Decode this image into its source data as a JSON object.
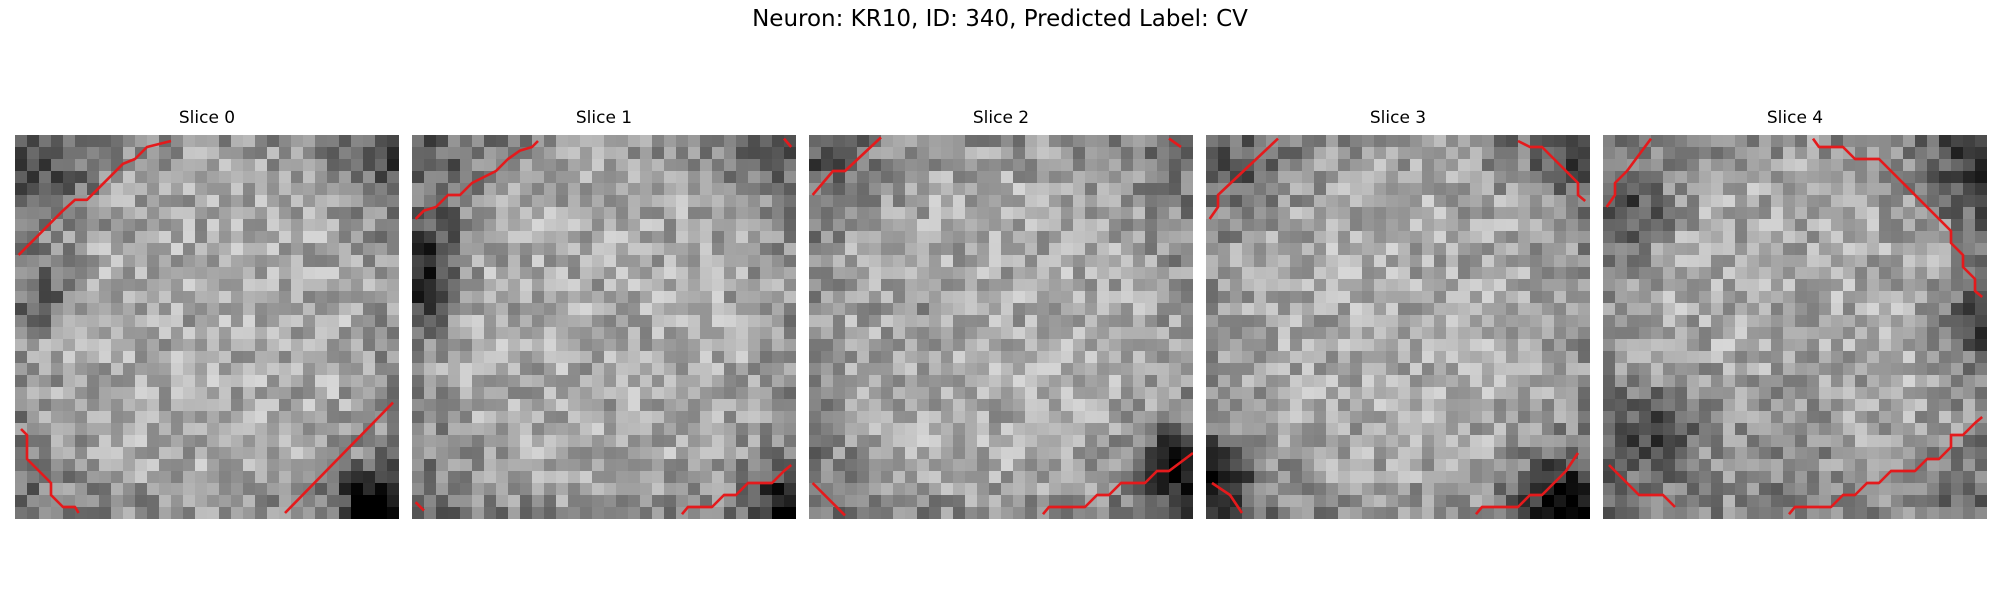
{
  "figure": {
    "title": "Neuron: KR10, ID: 340, Predicted Label: CV"
  },
  "panels": [
    {
      "title": "Slice 0"
    },
    {
      "title": "Slice 1"
    },
    {
      "title": "Slice 2"
    },
    {
      "title": "Slice 3"
    },
    {
      "title": "Slice 4"
    }
  ],
  "image": {
    "colormap": "grayscale",
    "grid": "32x32 pixelated slices",
    "contour_color": "#e41a1c"
  }
}
